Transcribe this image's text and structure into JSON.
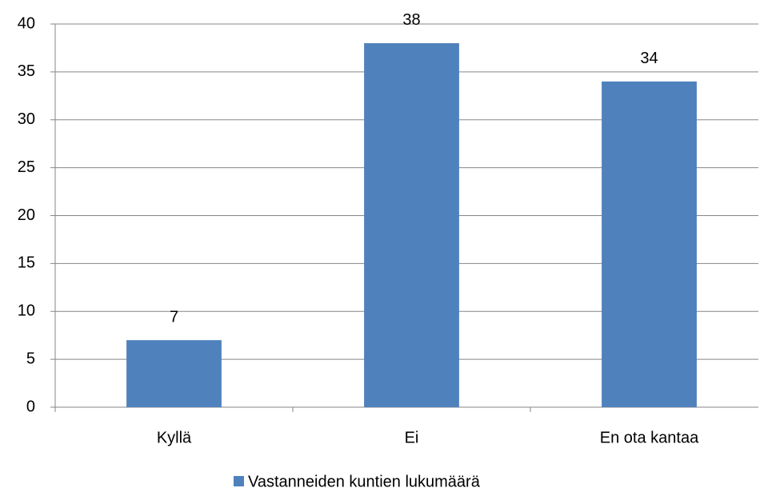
{
  "chart_data": {
    "type": "bar",
    "categories": [
      "Kyllä",
      "Ei",
      "En ota kantaa"
    ],
    "series": [
      {
        "name": "Vastanneiden kuntien lukumäärä",
        "color": "#4f81bd",
        "values": [
          7,
          38,
          34
        ]
      }
    ],
    "ylim": [
      0,
      40
    ],
    "yticks": [
      0,
      5,
      10,
      15,
      20,
      25,
      30,
      35,
      40
    ],
    "grid": true,
    "legend": "bottom",
    "data_labels": true
  }
}
